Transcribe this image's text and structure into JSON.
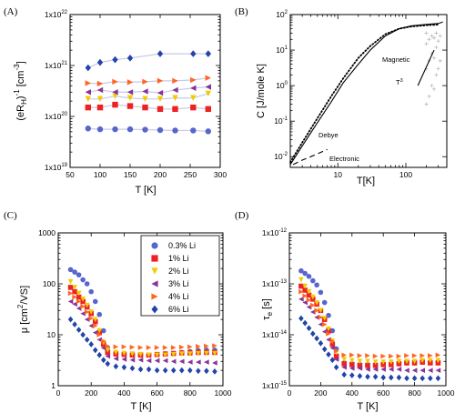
{
  "colors": {
    "s0": "#5566cc",
    "s1": "#ee2222",
    "s2": "#eecc00",
    "s3": "#883399",
    "s4": "#ff6622",
    "s5": "#2244aa",
    "trend": "#c8c8e8",
    "axis": "#000000",
    "ghost": "#bbbbbb"
  },
  "chart_data": [
    {
      "id": "A",
      "type": "scatter",
      "panel_label": "(A)",
      "xlabel": "T [K]",
      "ylabel": "(eR_H)^-1 [cm^-3]",
      "xlim": [
        50,
        300
      ],
      "ylog": true,
      "ylim": [
        1e+19,
        1e+22
      ],
      "xticks": [
        "50",
        "100",
        "150",
        "200",
        "250",
        "300"
      ],
      "yticks": [
        "1x10^19",
        "1x10^20",
        "1x10^21",
        "1x10^22"
      ],
      "series": [
        {
          "marker": "circle",
          "color": "s0",
          "x": [
            80,
            100,
            125,
            150,
            175,
            200,
            225,
            255,
            280
          ],
          "y": [
            5.8e+19,
            5.6e+19,
            5.6e+19,
            5.6e+19,
            5.5e+19,
            5.4e+19,
            5.3e+19,
            5.3e+19,
            5.1e+19
          ]
        },
        {
          "marker": "square",
          "color": "s1",
          "x": [
            80,
            100,
            125,
            150,
            175,
            200,
            225,
            255,
            280
          ],
          "y": [
            1.5e+20,
            1.5e+20,
            1.7e+20,
            1.6e+20,
            1.5e+20,
            1.4e+20,
            1.4e+20,
            1.5e+20,
            1.4e+20
          ]
        },
        {
          "marker": "triangle-down",
          "color": "s2",
          "x": [
            80,
            100,
            125,
            150,
            175,
            200,
            225,
            255,
            280
          ],
          "y": [
            2.2e+20,
            2.2e+20,
            2.5e+20,
            2.3e+20,
            2.2e+20,
            2.2e+20,
            2.3e+20,
            2.3e+20,
            2.8e+20
          ]
        },
        {
          "marker": "triangle-left",
          "color": "s3",
          "x": [
            80,
            100,
            125,
            150,
            175,
            200,
            225,
            255,
            280
          ],
          "y": [
            3e+20,
            3.3e+20,
            3e+20,
            3e+20,
            3.1e+20,
            2.9e+20,
            3.3e+20,
            3.6e+20,
            3.8e+20
          ]
        },
        {
          "marker": "triangle-right",
          "color": "s4",
          "x": [
            80,
            100,
            125,
            150,
            175,
            200,
            225,
            255,
            280
          ],
          "y": [
            4.5e+20,
            4.4e+20,
            4.8e+20,
            4.7e+20,
            4.8e+20,
            5e+20,
            5e+20,
            5.2e+20,
            5.7e+20
          ]
        },
        {
          "marker": "diamond",
          "color": "s5",
          "x": [
            80,
            100,
            125,
            150,
            200,
            255,
            280
          ],
          "y": [
            9e+20,
            1.15e+21,
            1.3e+21,
            1.4e+21,
            1.7e+21,
            1.7e+21,
            1.7e+21
          ]
        }
      ]
    },
    {
      "id": "B",
      "type": "line",
      "panel_label": "(B)",
      "xlabel": "T[K]",
      "ylabel": "C [J/mole K]",
      "xlog": true,
      "xlim": [
        2,
        400
      ],
      "ylog": true,
      "ylim": [
        0.005,
        100
      ],
      "xticks": [
        "10",
        "100"
      ],
      "yticks": [
        "10^-2",
        "10^-1",
        "10^0",
        "10^1",
        "10^2"
      ],
      "annotations": [
        "Debye",
        "Electronic",
        "Magnetic",
        "T^3"
      ],
      "curves": [
        {
          "name": "data",
          "style": "solid",
          "x": [
            2,
            3,
            5,
            8,
            12,
            20,
            30,
            50,
            80,
            120,
            200,
            300,
            350
          ],
          "y": [
            0.006,
            0.02,
            0.09,
            0.35,
            1.2,
            4,
            10,
            25,
            40,
            48,
            53,
            56,
            62
          ]
        },
        {
          "name": "Debye",
          "style": "dotted",
          "x": [
            2,
            3,
            5,
            8,
            12,
            20,
            30,
            50,
            80,
            120,
            200,
            300
          ],
          "y": [
            0.007,
            0.025,
            0.12,
            0.5,
            1.6,
            6,
            13,
            28,
            40,
            46,
            50,
            52
          ]
        },
        {
          "name": "Electronic",
          "style": "dashed",
          "x": [
            2.2,
            3,
            4.5,
            7
          ],
          "y": [
            0.006,
            0.008,
            0.011,
            0.016
          ]
        },
        {
          "name": "T3",
          "style": "solid",
          "x": [
            150,
            260
          ],
          "y": [
            1,
            10
          ]
        }
      ]
    },
    {
      "id": "C",
      "type": "scatter",
      "panel_label": "(C)",
      "xlabel": "T [K]",
      "ylabel": "μ [cm^2/VS]",
      "xlim": [
        0,
        1000
      ],
      "ylog": true,
      "ylim": [
        1,
        1000
      ],
      "xticks": [
        "0",
        "200",
        "400",
        "600",
        "800",
        "1000"
      ],
      "yticks": [
        "1",
        "10",
        "100",
        "1000"
      ],
      "legend": [
        "0.3% Li",
        "1% Li",
        "2% Li",
        "3% Li",
        "4% Li",
        "6% Li"
      ],
      "series": [
        {
          "marker": "circle",
          "color": "s0",
          "x": [
            75,
            100,
            125,
            150,
            175,
            200,
            225,
            250,
            275,
            300,
            350,
            400,
            450,
            500,
            550,
            600,
            650,
            700,
            750,
            800,
            850,
            900,
            950
          ],
          "y": [
            190,
            170,
            150,
            120,
            100,
            70,
            45,
            25,
            12,
            5.5,
            4.3,
            4.1,
            4.0,
            4.0,
            4.0,
            4.1,
            4.2,
            4.3,
            4.5,
            4.7,
            4.9,
            5.0,
            5.0
          ]
        },
        {
          "marker": "square",
          "color": "s1",
          "x": [
            75,
            100,
            125,
            150,
            175,
            200,
            225,
            250,
            275,
            300,
            350,
            400,
            450,
            500,
            550,
            600,
            650,
            700,
            750,
            800,
            850,
            900,
            950
          ],
          "y": [
            85,
            70,
            55,
            45,
            35,
            26,
            18,
            11,
            6.5,
            4.5,
            4.2,
            4.1,
            4.0,
            4.0,
            4.0,
            4.1,
            4.2,
            4.3,
            4.4,
            4.4,
            4.5,
            4.5,
            4.5
          ]
        },
        {
          "marker": "triangle-down",
          "color": "s2",
          "x": [
            75,
            100,
            125,
            150,
            175,
            200,
            225,
            250,
            275,
            300,
            350,
            400,
            450,
            500,
            550,
            600,
            650,
            700,
            750,
            800,
            850,
            900,
            950
          ],
          "y": [
            110,
            85,
            65,
            50,
            38,
            28,
            20,
            12,
            7,
            5,
            4.5,
            4.3,
            4.2,
            4.1,
            4.0,
            4.0,
            4.0,
            4.1,
            4.2,
            4.2,
            4.3,
            4.3,
            4.3
          ]
        },
        {
          "marker": "triangle-left",
          "color": "s3",
          "x": [
            75,
            100,
            125,
            150,
            175,
            200,
            225,
            250,
            275,
            300,
            350,
            400,
            450,
            500,
            550,
            600,
            650,
            700,
            750,
            800,
            850,
            900,
            950
          ],
          "y": [
            45,
            40,
            33,
            26,
            20,
            15,
            11,
            8,
            5.5,
            3.8,
            3.4,
            3.3,
            3.2,
            3.2,
            3.1,
            3.1,
            3.1,
            3.0,
            3.0,
            2.9,
            2.9,
            2.9,
            2.8
          ]
        },
        {
          "marker": "triangle-right",
          "color": "s4",
          "x": [
            75,
            100,
            125,
            150,
            175,
            200,
            225,
            250,
            275,
            300,
            350,
            400,
            450,
            500,
            550,
            600,
            650,
            700,
            750,
            800,
            850,
            900,
            950
          ],
          "y": [
            65,
            55,
            45,
            36,
            28,
            21,
            15,
            10,
            7.5,
            6,
            5.8,
            5.8,
            5.7,
            5.6,
            5.6,
            5.6,
            5.6,
            5.6,
            5.7,
            5.8,
            5.9,
            6.0,
            6.1
          ]
        },
        {
          "marker": "diamond",
          "color": "s5",
          "x": [
            75,
            100,
            125,
            150,
            175,
            200,
            225,
            250,
            275,
            300,
            350,
            400,
            450,
            500,
            550,
            600,
            650,
            700,
            750,
            800,
            850,
            900,
            950
          ],
          "y": [
            20,
            16,
            12.5,
            10,
            8,
            6.5,
            5,
            4,
            3.2,
            2.7,
            2.4,
            2.3,
            2.2,
            2.1,
            2.1,
            2.0,
            2.0,
            2.0,
            2.0,
            2.0,
            1.95,
            1.95,
            1.9
          ]
        }
      ]
    },
    {
      "id": "D",
      "type": "scatter",
      "panel_label": "(D)",
      "xlabel": "T [K]",
      "ylabel": "τ_e [s]",
      "xlim": [
        0,
        1000
      ],
      "ylog": true,
      "ylim": [
        1e-15,
        1e-12
      ],
      "xticks": [
        "0",
        "200",
        "400",
        "600",
        "800",
        "1000"
      ],
      "yticks": [
        "1x10^-15",
        "1x10^-14",
        "1x10^-13",
        "1x10^-12"
      ],
      "series": [
        {
          "marker": "circle",
          "color": "s0",
          "x": [
            75,
            100,
            125,
            150,
            175,
            200,
            225,
            250,
            275,
            300,
            350,
            400,
            450,
            500,
            550,
            600,
            650,
            700,
            750,
            800,
            850,
            900,
            950
          ],
          "y": [
            1.8e-13,
            1.6e-13,
            1.4e-13,
            1.15e-13,
            9.5e-14,
            6.8e-14,
            4.3e-14,
            2.4e-14,
            1.2e-14,
            5.3e-15,
            2.8e-15,
            2.7e-15,
            2.6e-15,
            2.6e-15,
            2.6e-15,
            2.6e-15,
            2.7e-15,
            2.7e-15,
            2.8e-15,
            2.8e-15,
            2.9e-15,
            2.9e-15,
            2.9e-15
          ]
        },
        {
          "marker": "square",
          "color": "s1",
          "x": [
            75,
            100,
            125,
            150,
            175,
            200,
            225,
            250,
            275,
            300,
            350,
            400,
            450,
            500,
            550,
            600,
            650,
            700,
            750,
            800,
            850,
            900,
            950
          ],
          "y": [
            9e-14,
            7.5e-14,
            6e-14,
            5e-14,
            4e-14,
            3e-14,
            2e-14,
            1.2e-14,
            6.5e-15,
            3.8e-15,
            2.7e-15,
            2.6e-15,
            2.5e-15,
            2.5e-15,
            2.5e-15,
            2.6e-15,
            2.6e-15,
            2.7e-15,
            2.8e-15,
            2.8e-15,
            2.9e-15,
            2.8e-15,
            2.8e-15
          ]
        },
        {
          "marker": "triangle-down",
          "color": "s2",
          "x": [
            75,
            100,
            125,
            150,
            175,
            200,
            225,
            250,
            275,
            300,
            350,
            400,
            450,
            500,
            550,
            600,
            650,
            700,
            750,
            800,
            850,
            900,
            950
          ],
          "y": [
            1.2e-13,
            9e-14,
            7e-14,
            5.5e-14,
            4.2e-14,
            3e-14,
            2.1e-14,
            1.3e-14,
            7.5e-15,
            4.5e-15,
            3.3e-15,
            3.1e-15,
            3e-15,
            3e-15,
            2.9e-15,
            2.9e-15,
            2.9e-15,
            3e-15,
            3e-15,
            3e-15,
            3.1e-15,
            3.1e-15,
            3.1e-15
          ]
        },
        {
          "marker": "triangle-left",
          "color": "s3",
          "x": [
            75,
            100,
            125,
            150,
            175,
            200,
            225,
            250,
            275,
            300,
            350,
            400,
            450,
            500,
            550,
            600,
            650,
            700,
            750,
            800,
            850,
            900,
            950
          ],
          "y": [
            5e-14,
            4.3e-14,
            3.5e-14,
            2.8e-14,
            2.2e-14,
            1.6e-14,
            1.15e-14,
            8e-15,
            5.5e-15,
            3.3e-15,
            2.3e-15,
            2.2e-15,
            2.2e-15,
            2.1e-15,
            2.1e-15,
            2.1e-15,
            2.1e-15,
            2.1e-15,
            2e-15,
            2e-15,
            2e-15,
            2e-15,
            2e-15
          ]
        },
        {
          "marker": "triangle-right",
          "color": "s4",
          "x": [
            75,
            100,
            125,
            150,
            175,
            200,
            225,
            250,
            275,
            300,
            350,
            400,
            450,
            500,
            550,
            600,
            650,
            700,
            750,
            800,
            850,
            900,
            950
          ],
          "y": [
            7e-14,
            5.8e-14,
            4.8e-14,
            3.8e-14,
            3e-14,
            2.2e-14,
            1.6e-14,
            1.05e-14,
            7.5e-15,
            4.8e-15,
            4e-15,
            4e-15,
            3.9e-15,
            3.9e-15,
            3.8e-15,
            3.8e-15,
            3.8e-15,
            3.8e-15,
            3.9e-15,
            3.9e-15,
            3.9e-15,
            3.9e-15,
            4e-15
          ]
        },
        {
          "marker": "diamond",
          "color": "s5",
          "x": [
            75,
            100,
            125,
            150,
            175,
            200,
            225,
            250,
            275,
            300,
            350,
            400,
            450,
            500,
            550,
            600,
            650,
            700,
            750,
            800,
            850,
            900,
            950
          ],
          "y": [
            2.1e-14,
            1.7e-14,
            1.35e-14,
            1.05e-14,
            8.5e-15,
            6.8e-15,
            5.2e-15,
            4.1e-15,
            3.2e-15,
            2.3e-15,
            1.65e-15,
            1.6e-15,
            1.55e-15,
            1.5e-15,
            1.5e-15,
            1.45e-15,
            1.45e-15,
            1.45e-15,
            1.4e-15,
            1.4e-15,
            1.4e-15,
            1.4e-15,
            1.4e-15
          ]
        }
      ]
    }
  ]
}
